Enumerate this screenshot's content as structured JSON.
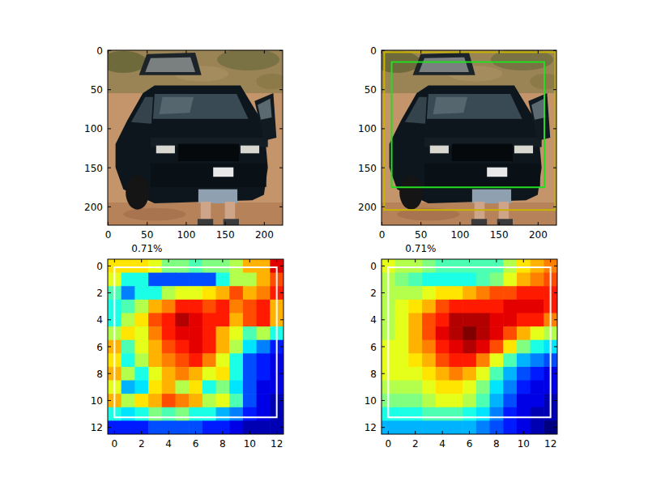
{
  "chart_data": [
    {
      "type": "image",
      "xlim": [
        -0.5,
        223.5
      ],
      "ylim": [
        223.5,
        -0.5
      ],
      "xticks": [
        0,
        50,
        100,
        150,
        200
      ],
      "yticks": [
        0,
        50,
        100,
        150,
        200
      ]
    },
    {
      "type": "image",
      "xlim": [
        -0.5,
        223.5
      ],
      "ylim": [
        223.5,
        -0.5
      ],
      "xticks": [
        0,
        50,
        100,
        150,
        200
      ],
      "yticks": [
        0,
        50,
        100,
        150,
        200
      ],
      "boxes": [
        {
          "x0": 12.5,
          "y0": 14.6,
          "x1": 208,
          "y1": 175,
          "color": "#22dd22"
        },
        {
          "x0": 3,
          "y0": 2,
          "x1": 222,
          "y1": 204,
          "color": "#c8b400"
        }
      ]
    },
    {
      "type": "heatmap",
      "annotation": {
        "text": "0.71%",
        "x": 2.4,
        "y": -1.3
      },
      "xlim": [
        -0.5,
        12.5
      ],
      "ylim": [
        12.5,
        -0.5
      ],
      "xticks": [
        0,
        2,
        4,
        6,
        8,
        10,
        12
      ],
      "yticks": [
        0,
        2,
        4,
        6,
        8,
        10,
        12
      ],
      "clim": [
        0,
        1
      ],
      "boxes": [
        {
          "x0": 0,
          "y0": 0.1,
          "x1": 12,
          "y1": 11.25,
          "color": "#ffffff"
        }
      ],
      "cells": [
        [
          0.65,
          0.65,
          0.65,
          0.6,
          0.5,
          0.5,
          0.45,
          0.5,
          0.5,
          0.55,
          0.7,
          0.7,
          0.9
        ],
        [
          0.6,
          0.4,
          0.4,
          0.2,
          0.2,
          0.2,
          0.2,
          0.2,
          0.4,
          0.55,
          0.55,
          0.7,
          0.8
        ],
        [
          0.45,
          0.25,
          0.4,
          0.4,
          0.55,
          0.6,
          0.6,
          0.65,
          0.7,
          0.8,
          0.7,
          0.75,
          0.85
        ],
        [
          0.4,
          0.45,
          0.55,
          0.7,
          0.75,
          0.85,
          0.85,
          0.8,
          0.85,
          0.75,
          0.8,
          0.85,
          0.7
        ],
        [
          0.4,
          0.55,
          0.65,
          0.8,
          0.85,
          0.95,
          0.9,
          0.85,
          0.85,
          0.7,
          0.8,
          0.85,
          0.7
        ],
        [
          0.55,
          0.65,
          0.6,
          0.75,
          0.85,
          0.9,
          0.9,
          0.85,
          0.7,
          0.6,
          0.45,
          0.55,
          0.4
        ],
        [
          0.7,
          0.45,
          0.6,
          0.7,
          0.8,
          0.85,
          0.9,
          0.85,
          0.7,
          0.55,
          0.35,
          0.25,
          0.15
        ],
        [
          0.65,
          0.4,
          0.55,
          0.7,
          0.75,
          0.8,
          0.85,
          0.75,
          0.6,
          0.4,
          0.2,
          0.15,
          0.1
        ],
        [
          0.7,
          0.55,
          0.4,
          0.6,
          0.7,
          0.75,
          0.7,
          0.6,
          0.65,
          0.4,
          0.2,
          0.15,
          0.1
        ],
        [
          0.6,
          0.3,
          0.35,
          0.65,
          0.7,
          0.55,
          0.65,
          0.4,
          0.5,
          0.35,
          0.2,
          0.1,
          0.1
        ],
        [
          0.7,
          0.55,
          0.65,
          0.7,
          0.8,
          0.75,
          0.7,
          0.55,
          0.6,
          0.45,
          0.2,
          0.1,
          0.05
        ],
        [
          0.4,
          0.35,
          0.4,
          0.5,
          0.45,
          0.5,
          0.4,
          0.4,
          0.3,
          0.25,
          0.15,
          0.1,
          0.05
        ],
        [
          0.15,
          0.15,
          0.15,
          0.2,
          0.2,
          0.2,
          0.2,
          0.15,
          0.15,
          0.1,
          0.05,
          0.05,
          0.05
        ]
      ]
    },
    {
      "type": "heatmap",
      "annotation": {
        "text": "0.71%",
        "x": 2.4,
        "y": -1.3
      },
      "xlim": [
        -0.5,
        12.5
      ],
      "ylim": [
        12.5,
        -0.5
      ],
      "xticks": [
        0,
        2,
        4,
        6,
        8,
        10,
        12
      ],
      "yticks": [
        0,
        2,
        4,
        6,
        8,
        10,
        12
      ],
      "clim": [
        0,
        1
      ],
      "boxes": [
        {
          "x0": 0,
          "y0": 0.1,
          "x1": 12,
          "y1": 11.25,
          "color": "#ffffff"
        }
      ],
      "cells": [
        [
          0.6,
          0.55,
          0.55,
          0.5,
          0.45,
          0.45,
          0.45,
          0.45,
          0.45,
          0.55,
          0.65,
          0.7,
          0.75
        ],
        [
          0.55,
          0.5,
          0.45,
          0.4,
          0.4,
          0.4,
          0.4,
          0.45,
          0.5,
          0.6,
          0.7,
          0.75,
          0.8
        ],
        [
          0.55,
          0.55,
          0.55,
          0.6,
          0.65,
          0.65,
          0.7,
          0.75,
          0.8,
          0.8,
          0.85,
          0.85,
          0.85
        ],
        [
          0.55,
          0.6,
          0.65,
          0.7,
          0.8,
          0.85,
          0.85,
          0.85,
          0.85,
          0.9,
          0.9,
          0.9,
          0.85
        ],
        [
          0.55,
          0.6,
          0.7,
          0.8,
          0.85,
          0.95,
          0.95,
          0.95,
          0.9,
          0.9,
          0.85,
          0.85,
          0.75
        ],
        [
          0.55,
          0.6,
          0.7,
          0.8,
          0.9,
          0.95,
          1.0,
          0.95,
          0.9,
          0.8,
          0.7,
          0.6,
          0.55
        ],
        [
          0.6,
          0.6,
          0.7,
          0.75,
          0.85,
          0.9,
          0.95,
          0.9,
          0.8,
          0.65,
          0.5,
          0.4,
          0.35
        ],
        [
          0.6,
          0.6,
          0.65,
          0.7,
          0.8,
          0.85,
          0.85,
          0.75,
          0.6,
          0.45,
          0.3,
          0.25,
          0.2
        ],
        [
          0.6,
          0.6,
          0.6,
          0.65,
          0.7,
          0.75,
          0.7,
          0.6,
          0.45,
          0.3,
          0.2,
          0.15,
          0.1
        ],
        [
          0.55,
          0.55,
          0.55,
          0.6,
          0.65,
          0.65,
          0.6,
          0.5,
          0.35,
          0.25,
          0.15,
          0.1,
          0.1
        ],
        [
          0.5,
          0.5,
          0.5,
          0.55,
          0.6,
          0.6,
          0.55,
          0.45,
          0.3,
          0.2,
          0.1,
          0.1,
          0.05
        ],
        [
          0.4,
          0.4,
          0.4,
          0.45,
          0.45,
          0.45,
          0.4,
          0.35,
          0.25,
          0.15,
          0.1,
          0.05,
          0.05
        ],
        [
          0.3,
          0.3,
          0.3,
          0.3,
          0.3,
          0.3,
          0.3,
          0.25,
          0.2,
          0.15,
          0.1,
          0.05,
          0.0
        ]
      ]
    }
  ]
}
